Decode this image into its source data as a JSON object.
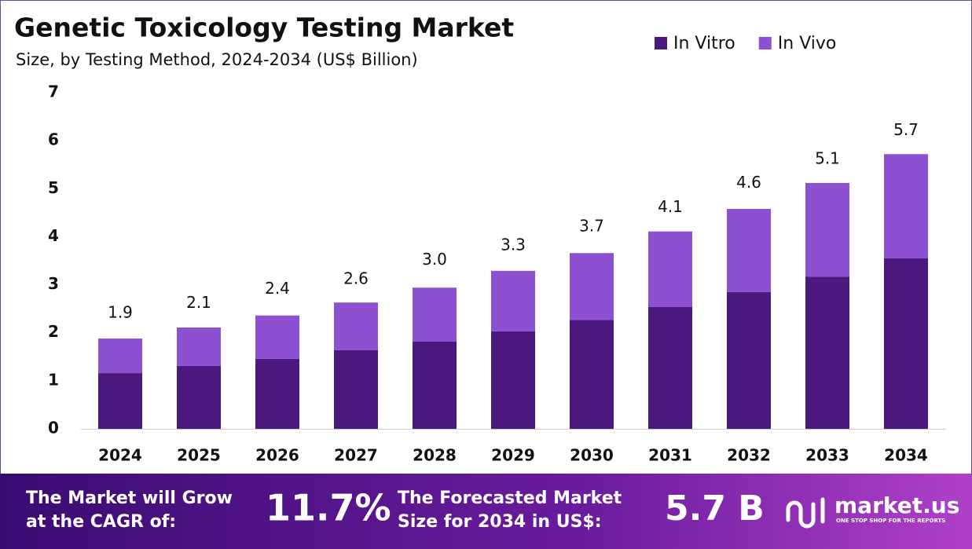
{
  "chart_data": {
    "type": "stacked-bar",
    "title": "Genetic Toxicology Testing Market",
    "subtitle": "Size, by Testing Method, 2024-2034 (US$ Billion)",
    "categories": [
      "2024",
      "2025",
      "2026",
      "2027",
      "2028",
      "2029",
      "2030",
      "2031",
      "2032",
      "2033",
      "2034"
    ],
    "series": [
      {
        "name": "In Vitro",
        "color": "#4b1880",
        "values": [
          1.16,
          1.31,
          1.46,
          1.64,
          1.82,
          2.03,
          2.27,
          2.54,
          2.85,
          3.17,
          3.55
        ]
      },
      {
        "name": "In Vivo",
        "color": "#8c50d0",
        "values": [
          0.72,
          0.8,
          0.9,
          0.99,
          1.12,
          1.26,
          1.39,
          1.57,
          1.73,
          1.95,
          2.17
        ]
      }
    ],
    "totals": {
      "values": [
        1.9,
        2.1,
        2.4,
        2.6,
        3.0,
        3.3,
        3.7,
        4.1,
        4.6,
        5.1,
        5.7
      ],
      "value_labels": [
        "1.9",
        "2.1",
        "2.4",
        "2.6",
        "3.0",
        "3.3",
        "3.7",
        "4.1",
        "4.6",
        "5.1",
        "5.7"
      ]
    },
    "ylim": [
      0,
      7
    ],
    "yticks": [
      0,
      1,
      2,
      3,
      4,
      5,
      6,
      7
    ],
    "grid": false
  },
  "footer": {
    "cagr_label": [
      "The Market will Grow",
      "at the CAGR of:"
    ],
    "cagr_value": "11.7%",
    "forecast_label": [
      "The Forecasted Market",
      "Size for 2034 in US$:"
    ],
    "forecast_value": "5.7 B",
    "brand": "market.us",
    "tagline": "ONE STOP SHOP FOR THE REPORTS"
  }
}
